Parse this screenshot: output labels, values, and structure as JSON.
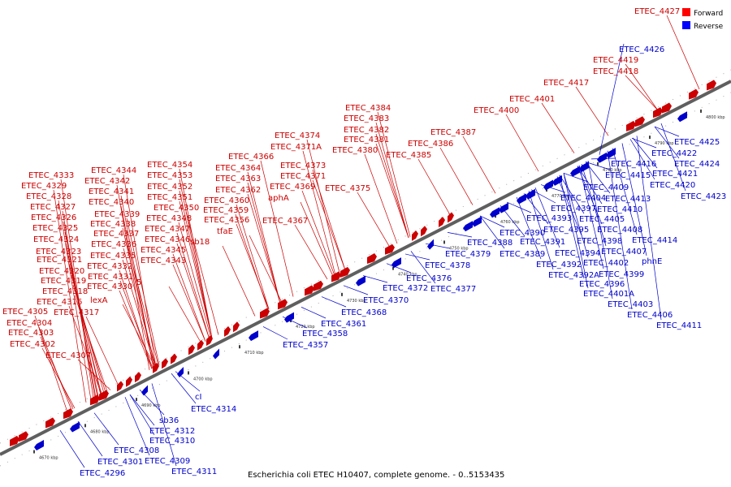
{
  "caption": "Escherichia coli ETEC H10407, complete genome. - 0..5153435",
  "legend": {
    "forward": {
      "label": "Forward",
      "color": "#ff0000"
    },
    "reverse": {
      "label": "Reverse",
      "color": "#0000ff"
    }
  },
  "colors": {
    "forward_text": "#cc0000",
    "reverse_text": "#0000cc",
    "backbone": "#5f5f5f"
  },
  "ticks": [
    "4670 kbp",
    "4680 kbp",
    "4690 kbp",
    "4700 kbp",
    "4710 kbp",
    "4720 kbp",
    "4730 kbp",
    "4740 kbp",
    "4750 kbp",
    "4760 kbp",
    "4770 kbp",
    "4780 kbp",
    "4790 kbp",
    "4800 kbp"
  ],
  "forward_labels": [
    "ETEC_4427",
    "ETEC_4419",
    "ETEC_4418",
    "ETEC_4417",
    "ETEC_4401",
    "ETEC_4400",
    "ETEC_4384",
    "ETEC_4383",
    "ETEC_4382",
    "ETEC_4381",
    "ETEC_4380",
    "ETEC_4387",
    "ETEC_4386",
    "ETEC_4385",
    "ETEC_4374",
    "ETEC_4371A",
    "ETEC_4366",
    "ETEC_4364",
    "ETEC_4363",
    "ETEC_4362",
    "ETEC_4373",
    "ETEC_4371",
    "ETEC_4369",
    "ETEC_4375",
    "aphA",
    "ETEC_4360",
    "ETEC_4359",
    "ETEC_4356",
    "ETEC_4367",
    "tfaE",
    "ETEC_4354",
    "ETEC_4353",
    "ETEC_4352",
    "ETEC_4351",
    "ETEC_4350",
    "ETEC_4348",
    "ETEC_4347",
    "ETEC_4346",
    "ETEC_4345",
    "ETEC_4343",
    "sb18",
    "ETEC_4344",
    "ETEC_4342",
    "ETEC_4341",
    "ETEC_4340",
    "ETEC_4339",
    "ETEC_4338",
    "ETEC_4337",
    "ETEC_4336",
    "ETEC_4335",
    "ETEC_4332",
    "ETEC_4331",
    "ETEC_4330",
    "5",
    "lexA",
    "ETEC_4333",
    "ETEC_4329",
    "ETEC_4328",
    "ETEC_4327",
    "ETEC_4326",
    "ETEC_4325",
    "ETEC_4324",
    "ETEC_4323",
    "ETEC_4321",
    "ETEC_4320",
    "ETEC_4319",
    "ETEC_4318",
    "ETEC_4316",
    "ETEC_4317",
    "ETEC_4305",
    "ETEC_4304",
    "ETEC_4303",
    "ETEC_4302",
    "ETEC_4307"
  ],
  "reverse_labels": [
    "ETEC_4426",
    "ETEC_4425",
    "ETEC_4422",
    "ETEC_4424",
    "ETEC_4421",
    "ETEC_4420",
    "ETEC_4423",
    "ETEC_4416",
    "ETEC_4415",
    "ETEC_4409",
    "ETEC_4413",
    "ETEC_4410",
    "ETEC_4404",
    "ETEC_4397",
    "ETEC_4405",
    "ETEC_4408",
    "ETEC_4393",
    "ETEC_4395",
    "ETEC_4398",
    "ETEC_4414",
    "ETEC_4390",
    "ETEC_4391",
    "ETEC_4394",
    "ETEC_4407",
    "ETEC_4388",
    "ETEC_4389",
    "ETEC_4392",
    "ETEC_4402",
    "phnE",
    "ETEC_4392A",
    "ETEC_4399",
    "ETEC_4396",
    "ETEC_4401A",
    "ETEC_4403",
    "ETEC_4406",
    "ETEC_4411",
    "ETEC_4379",
    "ETEC_4378",
    "ETEC_4376",
    "ETEC_4377",
    "ETEC_4372",
    "ETEC_4370",
    "ETEC_4368",
    "ETEC_4361",
    "ETEC_4358",
    "ETEC_4357",
    "cI",
    "ETEC_4314",
    "sb36",
    "ETEC_4312",
    "ETEC_4310",
    "ETEC_4308",
    "ETEC_4309",
    "ETEC_4311",
    "ETEC_4301",
    "ETEC_4296"
  ]
}
